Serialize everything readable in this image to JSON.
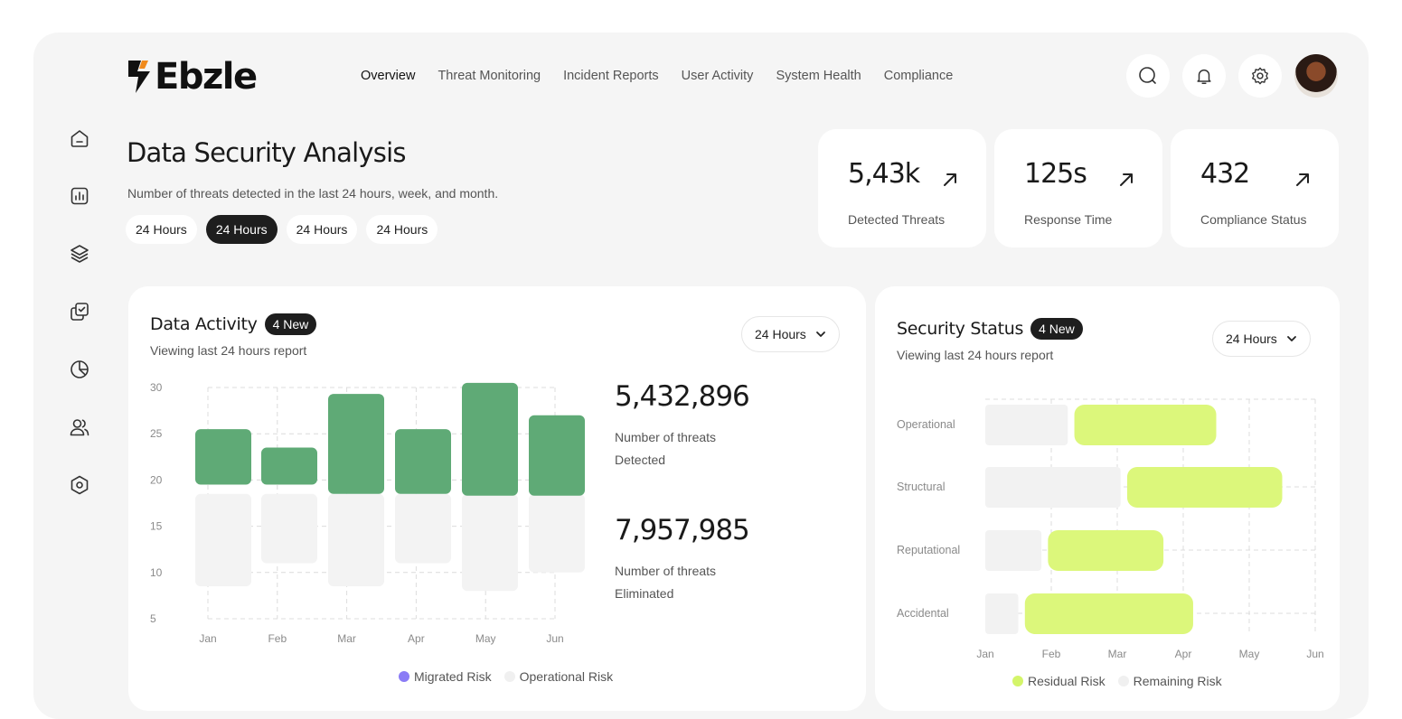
{
  "brand": {
    "name": "Ebzle",
    "accent": "#f08a1c"
  },
  "nav": {
    "items": [
      "Overview",
      "Threat Monitoring",
      "Incident Reports",
      "User Activity",
      "System Health",
      "Compliance"
    ],
    "active": 0
  },
  "top_actions": [
    "search-icon",
    "bell-icon",
    "gear-icon",
    "avatar"
  ],
  "sidebar": {
    "icons": [
      "home-icon",
      "bar-chart-icon",
      "layers-icon",
      "copy-check-icon",
      "pie-chart-icon",
      "users-icon",
      "hexagon-settings-icon"
    ]
  },
  "header": {
    "title": "Data Security Analysis",
    "subtitle": "Number of threats detected in the last 24 hours, week, and month.",
    "pills": [
      "24 Hours",
      "24 Hours",
      "24 Hours",
      "24 Hours"
    ],
    "active_pill": 1
  },
  "stats": [
    {
      "value": "5,43k",
      "label": "Detected Threats"
    },
    {
      "value": "125s",
      "label": "Response Time"
    },
    {
      "value": "432",
      "label": "Compliance Status"
    }
  ],
  "data_activity": {
    "title": "Data Activity",
    "badge": "4 New",
    "subtitle": "Viewing last 24 hours report",
    "dropdown": "24 Hours",
    "metrics": [
      {
        "value": "5,432,896",
        "line1": "Number of threats",
        "line2": "Detected"
      },
      {
        "value": "7,957,985",
        "line1": "Number of threats",
        "line2": "Eliminated"
      }
    ],
    "legend": [
      {
        "label": "Migrated Risk",
        "color": "#8b7cf6"
      },
      {
        "label": "Operational Risk",
        "color": "#f0f0f0"
      }
    ]
  },
  "security_status": {
    "title": "Security Status",
    "badge": "4 New",
    "subtitle": "Viewing last 24 hours report",
    "dropdown": "24 Hours",
    "legend": [
      {
        "label": "Residual Risk",
        "color": "#d4f56a"
      },
      {
        "label": "Remaining Risk",
        "color": "#f0f0f0"
      }
    ]
  },
  "chart_data": [
    {
      "type": "bar",
      "categories": [
        "Jan",
        "Feb",
        "Mar",
        "Apr",
        "May",
        "Jun"
      ],
      "y_ticks": [
        30,
        25,
        20,
        15,
        10,
        5
      ],
      "ylim": [
        5,
        30
      ],
      "series": [
        {
          "name": "Migrated Risk",
          "color": "#5faa76",
          "ranges": [
            [
              19.5,
              25.5
            ],
            [
              19.5,
              23.5
            ],
            [
              18.5,
              29.3
            ],
            [
              18.5,
              25.5
            ],
            [
              18.3,
              30.5
            ],
            [
              18.3,
              27.0
            ]
          ]
        },
        {
          "name": "Operational Risk",
          "color": "#f3f3f3",
          "ranges": [
            [
              8.5,
              18.5
            ],
            [
              11.0,
              18.5
            ],
            [
              8.5,
              18.5
            ],
            [
              11.0,
              18.5
            ],
            [
              8.0,
              18.5
            ],
            [
              10.0,
              18.5
            ]
          ]
        }
      ],
      "grid": true
    },
    {
      "type": "bar",
      "orientation": "horizontal",
      "categories": [
        "Operational",
        "Structural",
        "Reputational",
        "Accidental"
      ],
      "x_ticks": [
        "Jan",
        "Feb",
        "Mar",
        "Apr",
        "May",
        "Jun"
      ],
      "series": [
        {
          "name": "Remaining Risk",
          "color": "#f2f2f2",
          "ranges": [
            [
              0,
              1.25
            ],
            [
              0,
              2.05
            ],
            [
              0,
              0.85
            ],
            [
              0,
              0.5
            ]
          ]
        },
        {
          "name": "Residual Risk",
          "color": "#dcf77b",
          "ranges": [
            [
              1.35,
              3.5
            ],
            [
              2.15,
              4.5
            ],
            [
              0.95,
              2.7
            ],
            [
              0.6,
              3.15
            ]
          ]
        }
      ],
      "grid": true
    }
  ]
}
